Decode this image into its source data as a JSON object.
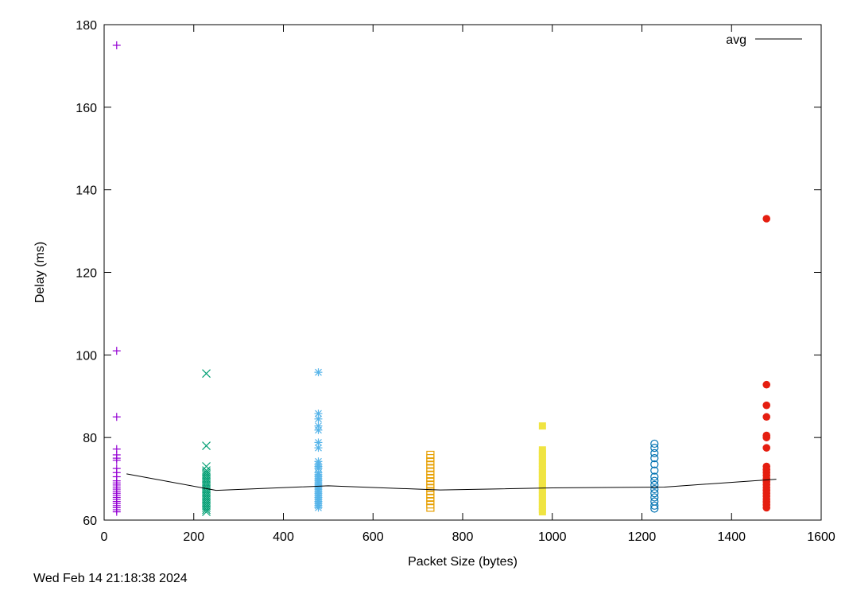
{
  "timestamp": "Wed Feb 14 21:18:38 2024",
  "chart_data": {
    "type": "scatter",
    "title": "",
    "xlabel": "Packet Size (bytes)",
    "ylabel": "Delay (ms)",
    "xlim": [
      0,
      1600
    ],
    "ylim": [
      60,
      180
    ],
    "xticks": [
      0,
      200,
      400,
      600,
      800,
      1000,
      1200,
      1400,
      1600
    ],
    "yticks": [
      60,
      80,
      100,
      120,
      140,
      160,
      180
    ],
    "grid": false,
    "legend_position": "top-right",
    "legend": [
      "avg"
    ],
    "series": [
      {
        "marker": "plus",
        "color": "#9400d3",
        "x": 28,
        "y": [
          175,
          101,
          85,
          77.2,
          75.8,
          75,
          74.5,
          72.5,
          71.5,
          70.5,
          69.5,
          69,
          68.5,
          68,
          67.5,
          67,
          66.5,
          66,
          65.5,
          65,
          64.5,
          64,
          63.5,
          63,
          62.5,
          62
        ]
      },
      {
        "marker": "cross",
        "color": "#009e73",
        "x": 228,
        "y": [
          95.5,
          78,
          73,
          72,
          71.5,
          71,
          70.5,
          70,
          69.5,
          69,
          68.5,
          68,
          67.5,
          67,
          66.5,
          66,
          65.5,
          65,
          64.5,
          64,
          63.5,
          63,
          62.5,
          62
        ]
      },
      {
        "marker": "star",
        "color": "#56b4e9",
        "x": 478,
        "y": [
          95.8,
          85.8,
          84.5,
          82.8,
          81.8,
          78.8,
          77.5,
          74.2,
          73.5,
          73,
          72.5,
          71.5,
          71,
          70.5,
          70,
          69.5,
          69,
          68.5,
          68,
          67.5,
          67,
          66.5,
          66,
          65.5,
          65,
          64.5,
          64,
          63.5,
          63
        ]
      },
      {
        "marker": "square-open",
        "color": "#e69f00",
        "x": 728,
        "y": [
          75.8,
          75,
          74.2,
          73.4,
          72.6,
          71.8,
          71,
          70.2,
          69.4,
          68.6,
          67.8,
          67,
          66.2,
          65.4,
          64.6,
          63.8,
          63
        ]
      },
      {
        "marker": "square-filled",
        "color": "#f0e442",
        "x": 978,
        "y": [
          82.8,
          77,
          76.2,
          75.4,
          74.6,
          73.8,
          73,
          72.2,
          71.4,
          70.6,
          69.8,
          69,
          68.2,
          67.4,
          66.6,
          65.8,
          65,
          64.2,
          63.4,
          62.6,
          62
        ]
      },
      {
        "marker": "circle-open",
        "color": "#0072b2",
        "x": 1228,
        "y": [
          78.5,
          77.5,
          76.2,
          75,
          73.5,
          72,
          70.5,
          69.5,
          68.5,
          67.5,
          66.5,
          65.5,
          64.5,
          63.5,
          62.8
        ]
      },
      {
        "marker": "circle-filled",
        "color": "#e51e10",
        "x": 1478,
        "y": [
          133,
          92.8,
          87.8,
          85,
          80.5,
          80,
          77.5,
          73,
          72.2,
          71.5,
          70.8,
          70,
          69.3,
          68.6,
          67.9,
          67.2,
          66.5,
          65.8,
          65.1,
          64.4,
          63.7,
          63
        ]
      },
      {
        "name": "avg",
        "marker": "line",
        "color": "#000000",
        "x": [
          50,
          250,
          500,
          750,
          1000,
          1250,
          1500
        ],
        "y": [
          71.2,
          67.2,
          68.3,
          67.3,
          67.8,
          68,
          69.9
        ]
      }
    ]
  }
}
